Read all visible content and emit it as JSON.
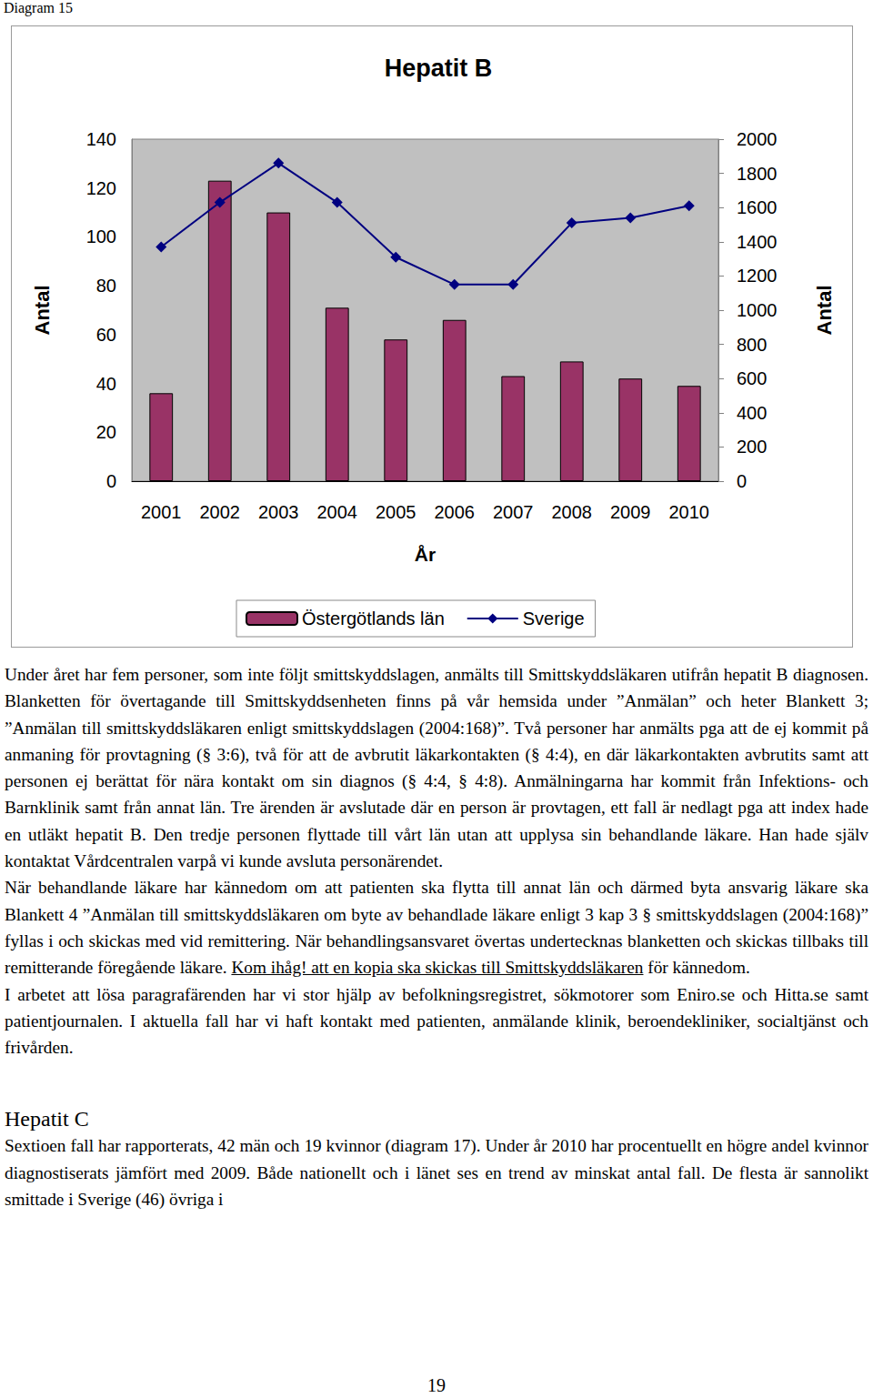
{
  "header": "Diagram 15",
  "chart_data": {
    "type": "bar",
    "title": "Hepatit B",
    "x_label": "År",
    "y_label": "Antal",
    "y2_label": "Antal",
    "categories": [
      "2001",
      "2002",
      "2003",
      "2004",
      "2005",
      "2006",
      "2007",
      "2008",
      "2009",
      "2010"
    ],
    "series": [
      {
        "name": "Östergötlands län",
        "type": "bar",
        "color": "#993366",
        "values": [
          36,
          123,
          110,
          71,
          58,
          66,
          43,
          49,
          42,
          39
        ]
      },
      {
        "name": "Sverige",
        "type": "line",
        "color": "#000080",
        "marker": "diamond",
        "axis": "y2",
        "values": [
          1370,
          1630,
          1860,
          1630,
          1310,
          1150,
          1150,
          1510,
          1540,
          1610
        ]
      }
    ],
    "ylim": [
      0,
      140
    ],
    "yticks": [
      0,
      20,
      40,
      60,
      80,
      100,
      120,
      140
    ],
    "y2lim": [
      0,
      2000
    ],
    "y2ticks": [
      0,
      200,
      400,
      600,
      800,
      1000,
      1200,
      1400,
      1600,
      1800,
      2000
    ],
    "legend": "bottom",
    "grid": false
  },
  "body": [
    {
      "type": "paragraph",
      "parts": [
        {
          "text": "Under året har fem personer, som inte följt smittskyddslagen, anmälts till Smittskyddsläkaren utifrån hepatit B diagnosen. Blanketten för övertagande till Smittskyddsenheten finns på vår hemsida under ”Anmälan” och heter Blankett 3; ”Anmälan till smittskyddsläkaren enligt smittskyddslagen (2004:168)”. Två personer har anmälts pga att de ej kommit på anmaning för provtagning (§ 3:6), två för att de avbrutit läkarkontakten (§ 4:4), en där läkarkontakten avbrutits samt att personen ej berättat för nära kontakt om sin diagnos (§ 4:4, § 4:8). Anmälningarna har kommit från Infektions- och Barnklinik samt från annat län. Tre ärenden är avslutade där en person är provtagen, ett fall är nedlagt pga att index hade en utläkt hepatit B. Den tredje personen flyttade till vårt län utan att upplysa sin behandlande läkare. Han hade själv kontaktat Vårdcentralen varpå vi kunde avsluta personärendet."
        }
      ]
    },
    {
      "type": "paragraph",
      "parts": [
        {
          "text": "När behandlande läkare har kännedom om att patienten ska flytta till annat län och därmed byta ansvarig läkare ska Blankett 4 ”Anmälan till smittskyddsläkaren om byte av behandlade läkare enligt 3 kap 3 § smittskyddslagen (2004:168)” fyllas i och skickas med vid remittering. När behandlingsansvaret övertas undertecknas blanketten och skickas tillbaks till remitterande föregående läkare. "
        },
        {
          "text": "Kom ihåg! att en kopia ska skickas till Smittskyddsläkaren",
          "underline": true
        },
        {
          "text": " för kännedom."
        }
      ]
    },
    {
      "type": "paragraph",
      "parts": [
        {
          "text": "I arbetet att lösa paragrafärenden har vi stor hjälp av befolkningsregistret, sökmotorer som Eniro.se och Hitta.se samt patientjournalen. I aktuella fall har vi haft kontakt med patienten, anmälande klinik, beroendekliniker, socialtjänst och frivården."
        }
      ]
    },
    {
      "type": "heading",
      "parts": [
        {
          "text": "Hepatit C"
        }
      ]
    },
    {
      "type": "paragraph",
      "parts": [
        {
          "text": "Sextioen fall har rapporterats, 42 män och 19 kvinnor (diagram 17). Under år 2010 har procentuellt en högre andel kvinnor diagnostiserats jämfört med 2009. Både nationellt och i länet ses en trend av minskat antal fall. De flesta är sannolikt smittade i Sverige (46) övriga i"
        }
      ]
    }
  ],
  "page_number": "19"
}
